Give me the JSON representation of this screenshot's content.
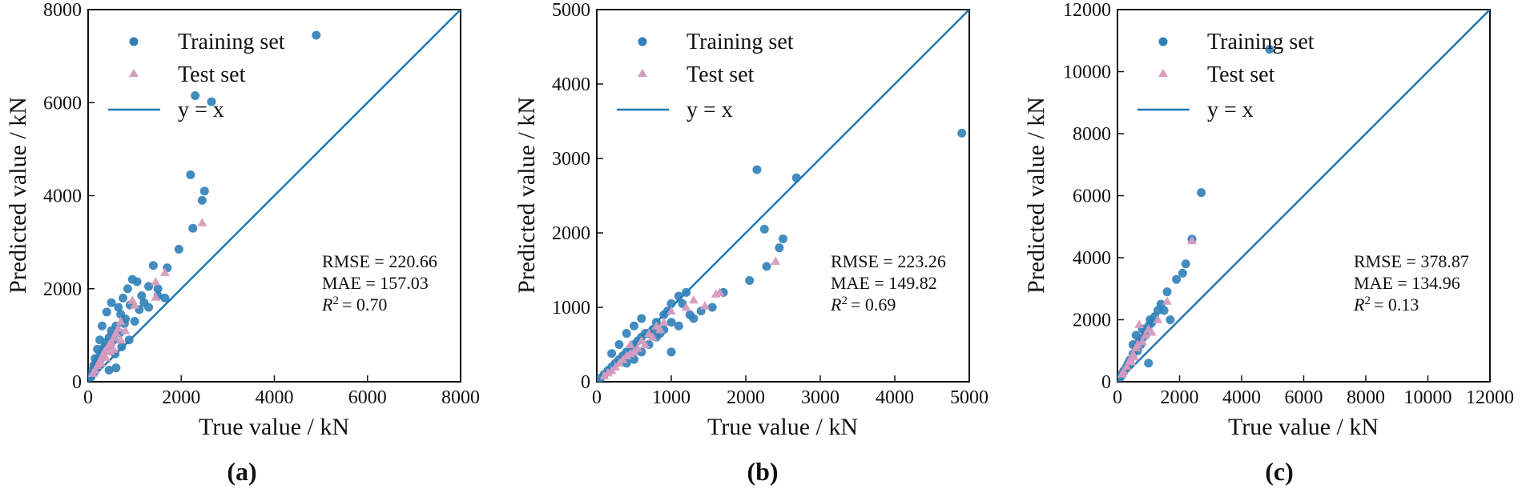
{
  "figure": {
    "panels": [
      {
        "label": "(a)",
        "metrics": {
          "rmse": "RMSE = 220.66",
          "mae": "MAE = 157.03",
          "r2": "= 0.70"
        }
      },
      {
        "label": "(b)",
        "metrics": {
          "rmse": "RMSE = 223.26",
          "mae": "MAE = 149.82",
          "r2": "= 0.69"
        }
      },
      {
        "label": "(c)",
        "metrics": {
          "rmse": "RMSE = 378.87",
          "mae": "MAE = 134.96",
          "r2": "= 0.13"
        }
      }
    ]
  },
  "chart_data": [
    {
      "type": "scatter",
      "xlabel": "True value / kN",
      "ylabel": "Predicted value / kN",
      "xlim": [
        0,
        8000
      ],
      "ylim": [
        0,
        8000
      ],
      "xticks": [
        0,
        2000,
        4000,
        6000,
        8000
      ],
      "yticks": [
        0,
        2000,
        4000,
        6000,
        8000
      ],
      "legend": [
        "Training set",
        "Test set",
        "y = x"
      ],
      "legend_position": "top-left",
      "colors": {
        "training": "#2f7fb8",
        "test": "#d79bbf",
        "reference_line": "#1f77b4"
      },
      "series": [
        {
          "name": "Training set",
          "marker": "circle",
          "points": [
            [
              4900,
              7450
            ],
            [
              2300,
              6150
            ],
            [
              2650,
              6020
            ],
            [
              2200,
              4450
            ],
            [
              2500,
              4100
            ],
            [
              2450,
              3900
            ],
            [
              2250,
              3300
            ],
            [
              1950,
              2850
            ],
            [
              1700,
              2450
            ],
            [
              1400,
              2500
            ],
            [
              1300,
              2050
            ],
            [
              1150,
              1850
            ],
            [
              1050,
              2150
            ],
            [
              950,
              2200
            ],
            [
              850,
              2000
            ],
            [
              750,
              1800
            ],
            [
              650,
              1600
            ],
            [
              500,
              1700
            ],
            [
              400,
              1500
            ],
            [
              300,
              1200
            ],
            [
              250,
              900
            ],
            [
              200,
              700
            ],
            [
              150,
              500
            ],
            [
              120,
              350
            ],
            [
              100,
              250
            ],
            [
              700,
              1450
            ],
            [
              800,
              1350
            ],
            [
              600,
              1200
            ],
            [
              500,
              1100
            ],
            [
              450,
              950
            ],
            [
              400,
              850
            ],
            [
              350,
              750
            ],
            [
              300,
              650
            ],
            [
              250,
              550
            ],
            [
              200,
              450
            ],
            [
              150,
              350
            ],
            [
              1000,
              1300
            ],
            [
              1100,
              1550
            ],
            [
              1200,
              1700
            ],
            [
              1500,
              1850
            ],
            [
              1650,
              1800
            ],
            [
              900,
              1650
            ],
            [
              780,
              1250
            ],
            [
              680,
              1050
            ],
            [
              550,
              900
            ],
            [
              480,
              800
            ],
            [
              380,
              700
            ],
            [
              320,
              600
            ],
            [
              280,
              500
            ],
            [
              180,
              300
            ],
            [
              130,
              200
            ],
            [
              80,
              150
            ],
            [
              60,
              100
            ],
            [
              580,
              600
            ],
            [
              720,
              750
            ],
            [
              880,
              900
            ],
            [
              600,
              300
            ],
            [
              450,
              250
            ],
            [
              1300,
              1600
            ],
            [
              1500,
              2000
            ]
          ]
        },
        {
          "name": "Test set",
          "marker": "triangle",
          "points": [
            [
              2450,
              3420
            ],
            [
              1650,
              2350
            ],
            [
              1450,
              2150
            ],
            [
              1450,
              1820
            ],
            [
              950,
              1750
            ],
            [
              1000,
              1650
            ],
            [
              700,
              1300
            ],
            [
              650,
              1150
            ],
            [
              600,
              1050
            ],
            [
              550,
              950
            ],
            [
              500,
              850
            ],
            [
              450,
              800
            ],
            [
              400,
              700
            ],
            [
              350,
              650
            ],
            [
              300,
              550
            ],
            [
              250,
              450
            ],
            [
              200,
              350
            ],
            [
              150,
              250
            ],
            [
              100,
              180
            ],
            [
              700,
              900
            ],
            [
              550,
              700
            ],
            [
              800,
              1100
            ],
            [
              480,
              650
            ],
            [
              380,
              520
            ],
            [
              280,
              400
            ]
          ]
        }
      ]
    },
    {
      "type": "scatter",
      "xlabel": "True value / kN",
      "ylabel": "Predicted value / kN",
      "xlim": [
        0,
        5000
      ],
      "ylim": [
        0,
        5000
      ],
      "xticks": [
        0,
        1000,
        2000,
        3000,
        4000,
        5000
      ],
      "yticks": [
        0,
        1000,
        2000,
        3000,
        4000,
        5000
      ],
      "legend": [
        "Training set",
        "Test set",
        "y = x"
      ],
      "legend_position": "top-left",
      "colors": {
        "training": "#2f7fb8",
        "test": "#d79bbf",
        "reference_line": "#1f77b4"
      },
      "series": [
        {
          "name": "Training set",
          "marker": "circle",
          "points": [
            [
              4900,
              3340
            ],
            [
              2150,
              2850
            ],
            [
              2680,
              2740
            ],
            [
              2250,
              2050
            ],
            [
              2500,
              1920
            ],
            [
              2450,
              1800
            ],
            [
              2050,
              1360
            ],
            [
              2280,
              1550
            ],
            [
              1700,
              1200
            ],
            [
              1550,
              1000
            ],
            [
              1400,
              950
            ],
            [
              1300,
              850
            ],
            [
              1200,
              1200
            ],
            [
              1100,
              1150
            ],
            [
              1000,
              1050
            ],
            [
              950,
              950
            ],
            [
              900,
              900
            ],
            [
              800,
              800
            ],
            [
              750,
              700
            ],
            [
              700,
              650
            ],
            [
              650,
              650
            ],
            [
              600,
              600
            ],
            [
              550,
              550
            ],
            [
              500,
              500
            ],
            [
              450,
              450
            ],
            [
              400,
              400
            ],
            [
              350,
              350
            ],
            [
              300,
              300
            ],
            [
              250,
              250
            ],
            [
              200,
              200
            ],
            [
              150,
              150
            ],
            [
              100,
              100
            ],
            [
              50,
              50
            ],
            [
              800,
              600
            ],
            [
              1000,
              800
            ],
            [
              1100,
              750
            ],
            [
              900,
              700
            ],
            [
              1000,
              400
            ],
            [
              600,
              850
            ],
            [
              500,
              750
            ],
            [
              400,
              650
            ],
            [
              300,
              500
            ],
            [
              200,
              380
            ],
            [
              700,
              500
            ],
            [
              600,
              400
            ],
            [
              500,
              300
            ],
            [
              400,
              250
            ],
            [
              1150,
              1050
            ],
            [
              1250,
              900
            ],
            [
              850,
              650
            ]
          ]
        },
        {
          "name": "Test set",
          "marker": "triangle",
          "points": [
            [
              2400,
              1620
            ],
            [
              1600,
              1180
            ],
            [
              1450,
              1020
            ],
            [
              1000,
              950
            ],
            [
              900,
              800
            ],
            [
              800,
              750
            ],
            [
              700,
              650
            ],
            [
              650,
              500
            ],
            [
              600,
              550
            ],
            [
              550,
              450
            ],
            [
              500,
              400
            ],
            [
              450,
              380
            ],
            [
              400,
              350
            ],
            [
              350,
              300
            ],
            [
              300,
              250
            ],
            [
              250,
              200
            ],
            [
              200,
              150
            ],
            [
              150,
              120
            ],
            [
              100,
              80
            ],
            [
              750,
              600
            ],
            [
              850,
              700
            ],
            [
              1200,
              1000
            ],
            [
              1300,
              1100
            ],
            [
              1650,
              1200
            ],
            [
              450,
              500
            ]
          ]
        }
      ]
    },
    {
      "type": "scatter",
      "xlabel": "True value / kN",
      "ylabel": "Predicted value / kN",
      "xlim": [
        0,
        12000
      ],
      "ylim": [
        0,
        12000
      ],
      "xticks": [
        0,
        2000,
        4000,
        6000,
        8000,
        10000,
        12000
      ],
      "yticks": [
        0,
        2000,
        4000,
        6000,
        8000,
        10000,
        12000
      ],
      "legend": [
        "Training set",
        "Test set",
        "y = x"
      ],
      "legend_position": "top-left",
      "colors": {
        "training": "#2f7fb8",
        "test": "#d79bbf",
        "reference_line": "#1f77b4"
      },
      "series": [
        {
          "name": "Training set",
          "marker": "circle",
          "points": [
            [
              4900,
              10720
            ],
            [
              2700,
              6100
            ],
            [
              2400,
              4600
            ],
            [
              2200,
              3800
            ],
            [
              2100,
              3500
            ],
            [
              1900,
              3300
            ],
            [
              1600,
              2900
            ],
            [
              1400,
              2500
            ],
            [
              1300,
              2300
            ],
            [
              1200,
              2100
            ],
            [
              1100,
              1900
            ],
            [
              1000,
              1800
            ],
            [
              900,
              1600
            ],
            [
              800,
              1400
            ],
            [
              700,
              1300
            ],
            [
              600,
              1100
            ],
            [
              500,
              900
            ],
            [
              400,
              700
            ],
            [
              300,
              500
            ],
            [
              200,
              350
            ],
            [
              150,
              250
            ],
            [
              100,
              150
            ],
            [
              800,
              1700
            ],
            [
              900,
              1500
            ],
            [
              1050,
              2000
            ],
            [
              600,
              1500
            ],
            [
              500,
              1200
            ],
            [
              1500,
              2300
            ],
            [
              1700,
              2000
            ],
            [
              1000,
              600
            ],
            [
              650,
              1000
            ],
            [
              750,
              1200
            ],
            [
              350,
              600
            ],
            [
              250,
              400
            ]
          ]
        },
        {
          "name": "Test set",
          "marker": "triangle",
          "points": [
            [
              2400,
              4550
            ],
            [
              1600,
              2600
            ],
            [
              1300,
              2000
            ],
            [
              700,
              1850
            ],
            [
              900,
              1500
            ],
            [
              800,
              1300
            ],
            [
              600,
              1100
            ],
            [
              500,
              900
            ],
            [
              400,
              700
            ],
            [
              300,
              500
            ],
            [
              200,
              350
            ],
            [
              150,
              250
            ],
            [
              1000,
              1700
            ],
            [
              1100,
              1600
            ],
            [
              650,
              1200
            ],
            [
              550,
              800
            ],
            [
              450,
              650
            ]
          ]
        }
      ]
    }
  ]
}
